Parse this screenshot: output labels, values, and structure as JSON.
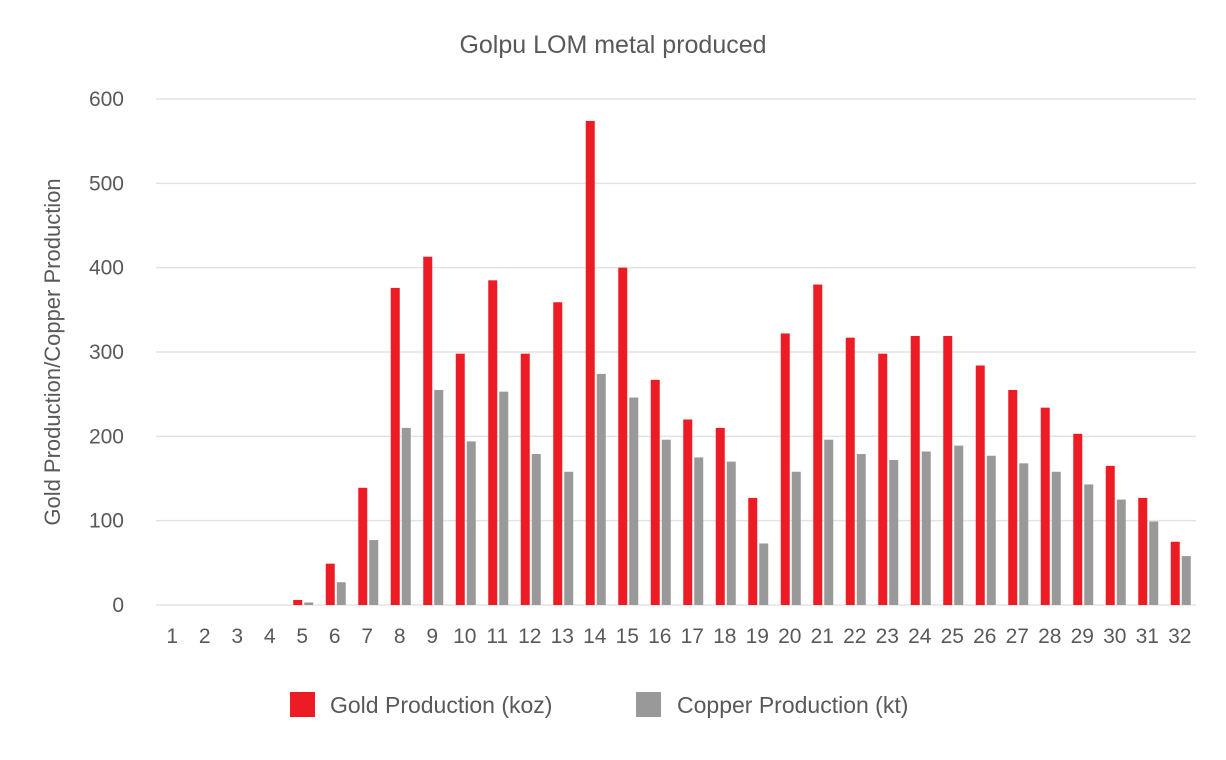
{
  "chart_data": {
    "type": "bar",
    "title": "Golpu LOM metal produced",
    "xlabel": "",
    "ylabel": "Gold Production/Copper Production",
    "ylim": [
      0,
      600
    ],
    "yticks": [
      "0",
      "100",
      "200",
      "300",
      "400",
      "500",
      "600"
    ],
    "grid": true,
    "legend_position": "bottom",
    "categories": [
      "1",
      "2",
      "3",
      "4",
      "5",
      "6",
      "7",
      "8",
      "9",
      "10",
      "11",
      "12",
      "13",
      "14",
      "15",
      "16",
      "17",
      "18",
      "19",
      "20",
      "21",
      "22",
      "23",
      "24",
      "25",
      "26",
      "27",
      "28",
      "29",
      "30",
      "31",
      "32"
    ],
    "series": [
      {
        "name": "Gold Production (koz)",
        "color": "#ed1c24",
        "values": [
          0,
          0,
          0,
          0,
          6,
          49,
          139,
          376,
          413,
          298,
          385,
          298,
          359,
          574,
          400,
          267,
          220,
          210,
          127,
          322,
          380,
          317,
          298,
          319,
          319,
          284,
          255,
          234,
          203,
          165,
          127,
          75
        ]
      },
      {
        "name": "Copper Production (kt)",
        "color": "#999999",
        "values": [
          0,
          0,
          0,
          0,
          3,
          27,
          77,
          210,
          255,
          194,
          253,
          179,
          158,
          274,
          246,
          196,
          175,
          170,
          73,
          158,
          196,
          179,
          172,
          182,
          189,
          177,
          168,
          158,
          143,
          125,
          99,
          58
        ]
      }
    ]
  }
}
